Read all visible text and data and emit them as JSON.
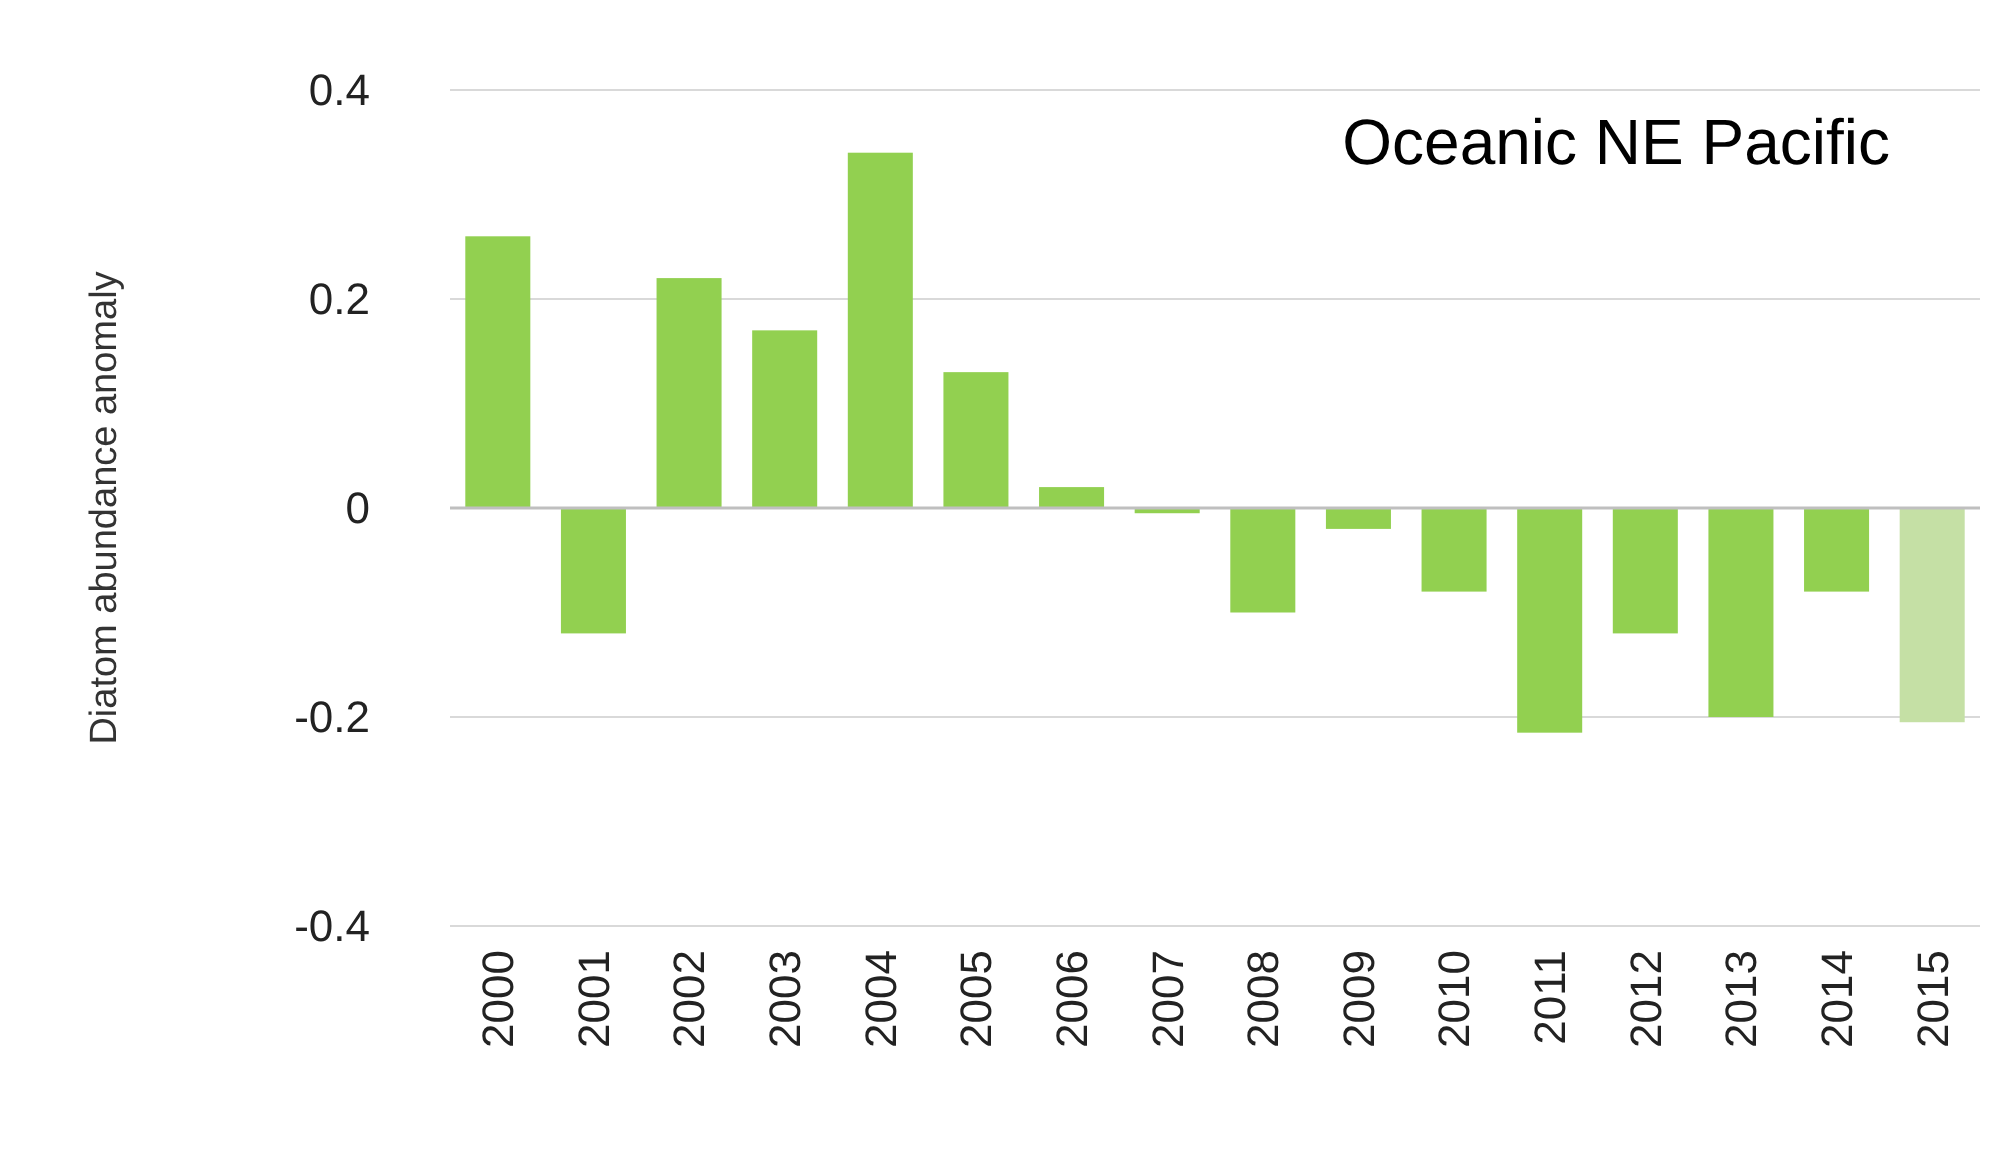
{
  "chart_data": {
    "type": "bar",
    "ylabel": "Diatom abundance anomaly",
    "annotations": [
      "Oceanic NE Pacific"
    ],
    "categories": [
      "2000",
      "2001",
      "2002",
      "2003",
      "2004",
      "2005",
      "2006",
      "2007",
      "2008",
      "2009",
      "2010",
      "2011",
      "2012",
      "2013",
      "2014",
      "2015"
    ],
    "values": [
      0.26,
      -0.12,
      0.22,
      0.17,
      0.34,
      0.13,
      0.02,
      -0.005,
      -0.1,
      -0.02,
      -0.08,
      -0.215,
      -0.12,
      -0.2,
      -0.08,
      -0.205
    ],
    "colors": [
      "#92d050",
      "#92d050",
      "#92d050",
      "#92d050",
      "#92d050",
      "#92d050",
      "#92d050",
      "#92d050",
      "#92d050",
      "#92d050",
      "#92d050",
      "#92d050",
      "#92d050",
      "#92d050",
      "#92d050",
      "#c5e0a5"
    ],
    "ylim": [
      -0.4,
      0.4
    ],
    "yticks": [
      {
        "value": -0.4,
        "label": "-0.4"
      },
      {
        "value": -0.2,
        "label": "-0.2"
      },
      {
        "value": 0,
        "label": "0"
      },
      {
        "value": 0.2,
        "label": "0.2"
      },
      {
        "value": 0.4,
        "label": "0.4"
      }
    ],
    "grid": "y"
  }
}
